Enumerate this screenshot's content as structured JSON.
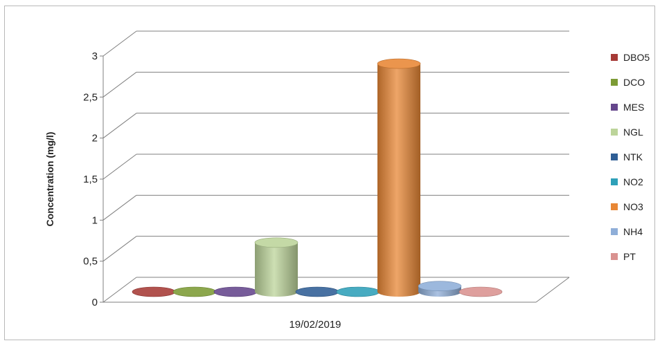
{
  "chart_data": {
    "type": "bar",
    "style": "3d-cylinder",
    "title": "",
    "xlabel": "",
    "ylabel": "Concentration (mg/l)",
    "ylim": [
      0,
      3
    ],
    "yticks": [
      "0",
      "0,5",
      "1",
      "1,5",
      "2",
      "2,5",
      "3"
    ],
    "categories": [
      "19/02/2019"
    ],
    "grid": true,
    "legend_position": "right",
    "series": [
      {
        "name": "DBO5",
        "values": [
          0
        ],
        "color": "#a63a36"
      },
      {
        "name": "DCO",
        "values": [
          0
        ],
        "color": "#7c9b35"
      },
      {
        "name": "MES",
        "values": [
          0
        ],
        "color": "#65468c"
      },
      {
        "name": "NGL",
        "values": [
          0.6
        ],
        "color": "#bcd49a"
      },
      {
        "name": "NTK",
        "values": [
          0
        ],
        "color": "#2f5e95"
      },
      {
        "name": "NO2",
        "values": [
          0
        ],
        "color": "#2ea0b8"
      },
      {
        "name": "NO3",
        "values": [
          2.78
        ],
        "color": "#e88735"
      },
      {
        "name": "NH4",
        "values": [
          0.07
        ],
        "color": "#8faed8"
      },
      {
        "name": "PT",
        "values": [
          0
        ],
        "color": "#d99290"
      }
    ]
  }
}
